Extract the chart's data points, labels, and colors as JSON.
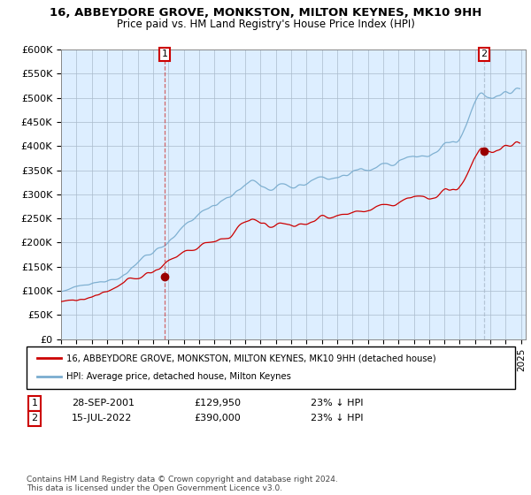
{
  "title": "16, ABBEYDORE GROVE, MONKSTON, MILTON KEYNES, MK10 9HH",
  "subtitle": "Price paid vs. HM Land Registry's House Price Index (HPI)",
  "ylabel_ticks": [
    "£0",
    "£50K",
    "£100K",
    "£150K",
    "£200K",
    "£250K",
    "£300K",
    "£350K",
    "£400K",
    "£450K",
    "£500K",
    "£550K",
    "£600K"
  ],
  "ytick_values": [
    0,
    50000,
    100000,
    150000,
    200000,
    250000,
    300000,
    350000,
    400000,
    450000,
    500000,
    550000,
    600000
  ],
  "hpi_color": "#7aadcf",
  "price_color": "#cc0000",
  "marker1_year": 2001.75,
  "marker1_price": 129950,
  "marker2_year": 2022.583,
  "marker2_price": 390000,
  "legend_label1": "16, ABBEYDORE GROVE, MONKSTON, MILTON KEYNES, MK10 9HH (detached house)",
  "legend_label2": "HPI: Average price, detached house, Milton Keynes",
  "note1_date": "28-SEP-2001",
  "note1_price": "£129,950",
  "note1_hpi": "23% ↓ HPI",
  "note2_date": "15-JUL-2022",
  "note2_price": "£390,000",
  "note2_hpi": "23% ↓ HPI",
  "copyright": "Contains HM Land Registry data © Crown copyright and database right 2024.\nThis data is licensed under the Open Government Licence v3.0.",
  "plot_bg_color": "#ddeeff",
  "grid_color": "#aabbcc",
  "fig_bg_color": "#ffffff"
}
